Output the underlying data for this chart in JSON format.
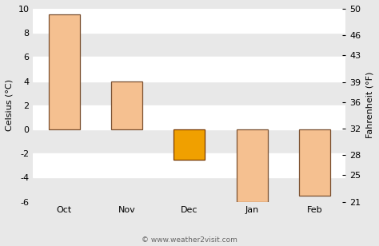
{
  "categories": [
    "Oct",
    "Nov",
    "Dec",
    "Jan",
    "Feb"
  ],
  "values": [
    9.5,
    4.0,
    -2.5,
    -6.0,
    -5.5
  ],
  "bar_colors": [
    "#f5c090",
    "#f5c090",
    "#f0a000",
    "#f5c090",
    "#f5c090"
  ],
  "bar_edgecolors": [
    "#7a5030",
    "#7a5030",
    "#7a3a00",
    "#7a5030",
    "#7a5030"
  ],
  "ylim_c": [
    -6,
    10
  ],
  "ylim_f": [
    21,
    50
  ],
  "yticks_c": [
    -6,
    -4,
    -2,
    0,
    2,
    4,
    6,
    8,
    10
  ],
  "yticks_f": [
    21,
    25,
    28,
    32,
    36,
    39,
    43,
    46,
    50
  ],
  "ylabel_left": "Celsius (°C)",
  "ylabel_right": "Fahrenheit (°F)",
  "background_color": "#e8e8e8",
  "stripe_color": "#ffffff",
  "watermark": "© www.weather2visit.com",
  "bar_width": 0.5
}
